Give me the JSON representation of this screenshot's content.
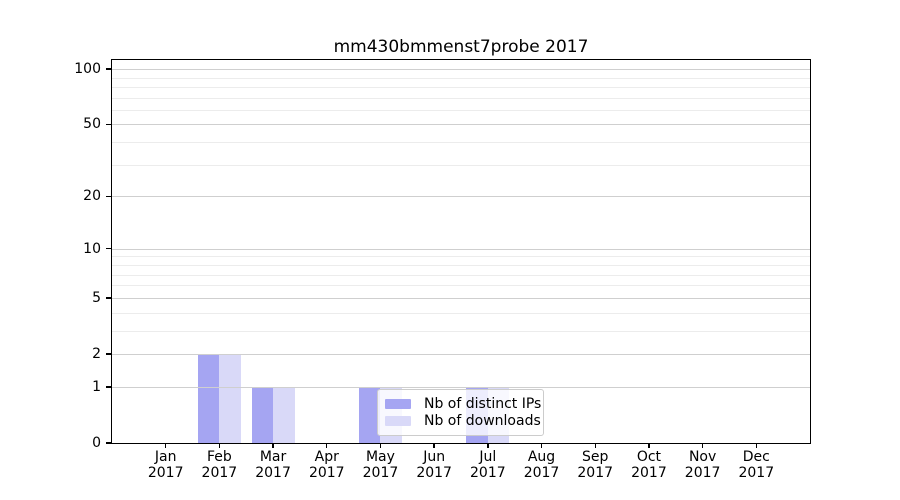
{
  "chart_data": {
    "type": "bar",
    "title": "mm430bmmenst7probe 2017",
    "categories": [
      "Jan",
      "Feb",
      "Mar",
      "Apr",
      "May",
      "Jun",
      "Jul",
      "Aug",
      "Sep",
      "Oct",
      "Nov",
      "Dec"
    ],
    "x_tick_year": "2017",
    "series": [
      {
        "name": "Nb of distinct IPs",
        "color": "#a5a5f2",
        "values": [
          0,
          2,
          1,
          0,
          1,
          0,
          1,
          0,
          0,
          0,
          0,
          0
        ]
      },
      {
        "name": "Nb of downloads",
        "color": "#d9d9f8",
        "values": [
          0,
          2,
          1,
          0,
          1,
          0,
          1,
          0,
          0,
          0,
          0,
          0
        ]
      }
    ],
    "yscale": "log1p",
    "ylim": [
      0,
      112
    ],
    "y_ticks": [
      0,
      1,
      2,
      5,
      10,
      20,
      50,
      100
    ],
    "y_minor_gridlines": [
      3,
      4,
      6,
      7,
      8,
      9,
      30,
      40,
      60,
      70,
      80,
      90
    ],
    "grid": true,
    "legend_position": "lower center-right inside plot",
    "colors": {
      "major_grid": "#cfcfcf",
      "minor_grid": "#ececec",
      "axis": "#000000",
      "legend_border": "#cccccc",
      "legend_background": "rgba(255,255,255,0.8)"
    }
  }
}
